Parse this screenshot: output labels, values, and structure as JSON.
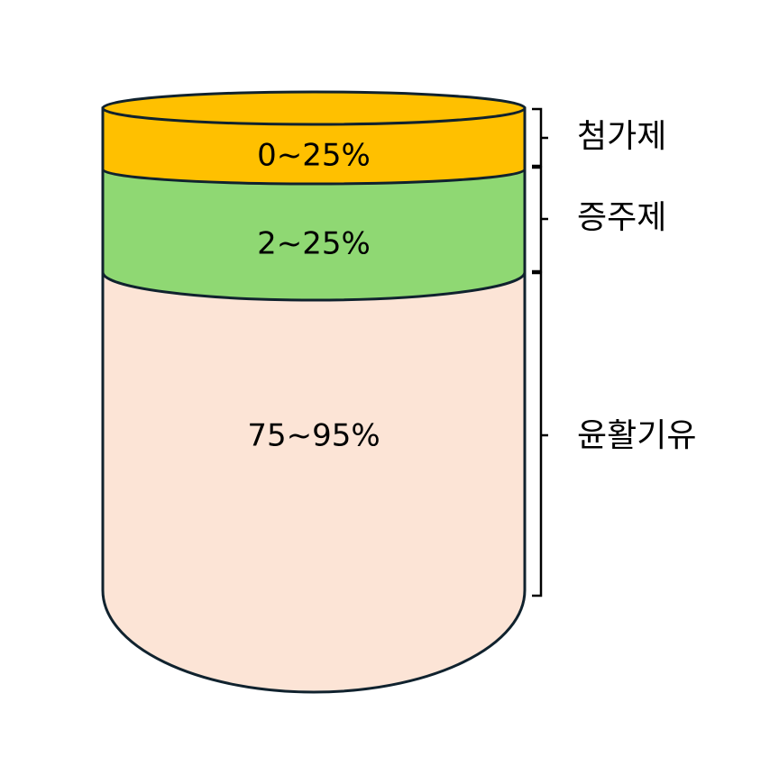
{
  "layers": [
    {
      "range": "0~25%",
      "name": "첨가제"
    },
    {
      "range": "2~25%",
      "name": "증주제"
    },
    {
      "range": "75~95%",
      "name": "윤활기유"
    }
  ]
}
